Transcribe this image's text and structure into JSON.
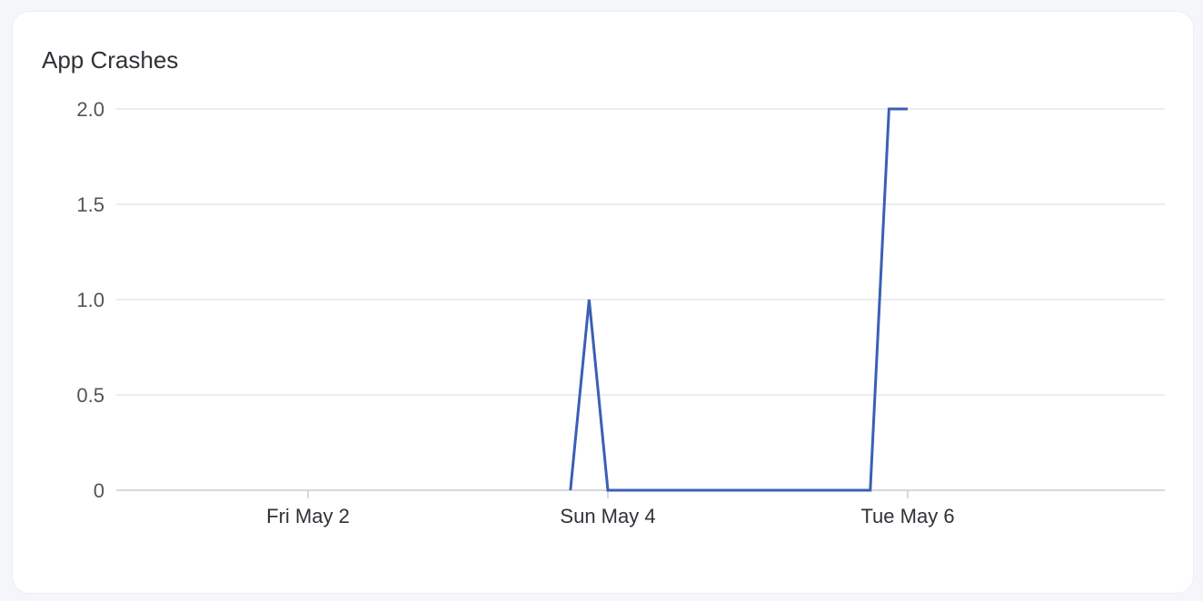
{
  "chart_data": {
    "type": "line",
    "title": "App Crashes",
    "xlabel": "",
    "ylabel": "",
    "ylim": [
      0,
      2
    ],
    "yticks": [
      "0",
      "0.5",
      "1.0",
      "1.5",
      "2.0"
    ],
    "xticks": [
      {
        "date": "2025-05-02T00:00",
        "label": "Fri May 2"
      },
      {
        "date": "2025-05-04T00:00",
        "label": "Sun May 4"
      },
      {
        "date": "2025-05-06T00:00",
        "label": "Tue May 6"
      }
    ],
    "grid": true,
    "series": [
      {
        "color": "#3a5fb5",
        "points": [
          {
            "x": "2025-05-03T18:00",
            "y": 0
          },
          {
            "x": "2025-05-03T21:00",
            "y": 1
          },
          {
            "x": "2025-05-04T00:00",
            "y": 0
          },
          {
            "x": "2025-05-05T18:00",
            "y": 0
          },
          {
            "x": "2025-05-05T21:00",
            "y": 2
          },
          {
            "x": "2025-05-06T00:00",
            "y": 2
          }
        ]
      }
    ]
  }
}
